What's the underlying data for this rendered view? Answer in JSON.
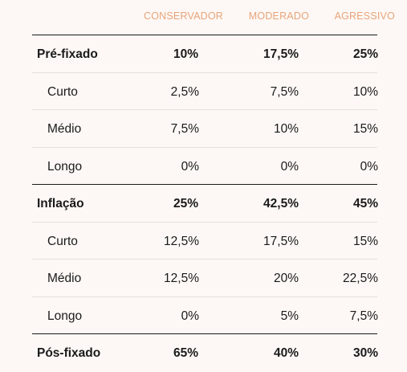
{
  "columns": [
    "CONSERVADOR",
    "MODERADO",
    "AGRESSIVO"
  ],
  "rows": [
    {
      "label": "Pré-fixado",
      "type": "group",
      "values": [
        "10%",
        "17,5%",
        "25%"
      ]
    },
    {
      "label": "Curto",
      "type": "sub",
      "values": [
        "2,5%",
        "7,5%",
        "10%"
      ]
    },
    {
      "label": "Médio",
      "type": "sub",
      "values": [
        "7,5%",
        "10%",
        "15%"
      ]
    },
    {
      "label": "Longo",
      "type": "sub",
      "values": [
        "0%",
        "0%",
        "0%"
      ]
    },
    {
      "label": "Inflação",
      "type": "group",
      "values": [
        "25%",
        "42,5%",
        "45%"
      ]
    },
    {
      "label": "Curto",
      "type": "sub",
      "values": [
        "12,5%",
        "17,5%",
        "15%"
      ]
    },
    {
      "label": "Médio",
      "type": "sub",
      "values": [
        "12,5%",
        "20%",
        "22,5%"
      ]
    },
    {
      "label": "Longo",
      "type": "sub",
      "values": [
        "0%",
        "5%",
        "7,5%"
      ]
    },
    {
      "label": "Pós-fixado",
      "type": "group",
      "values": [
        "65%",
        "40%",
        "30%"
      ]
    }
  ],
  "colors": {
    "background": "#fdf8f5",
    "header_text": "#e8a47a",
    "text": "#1a1a1a",
    "group_rule": "#1a1a1a",
    "row_rule": "#e6e0dc"
  }
}
